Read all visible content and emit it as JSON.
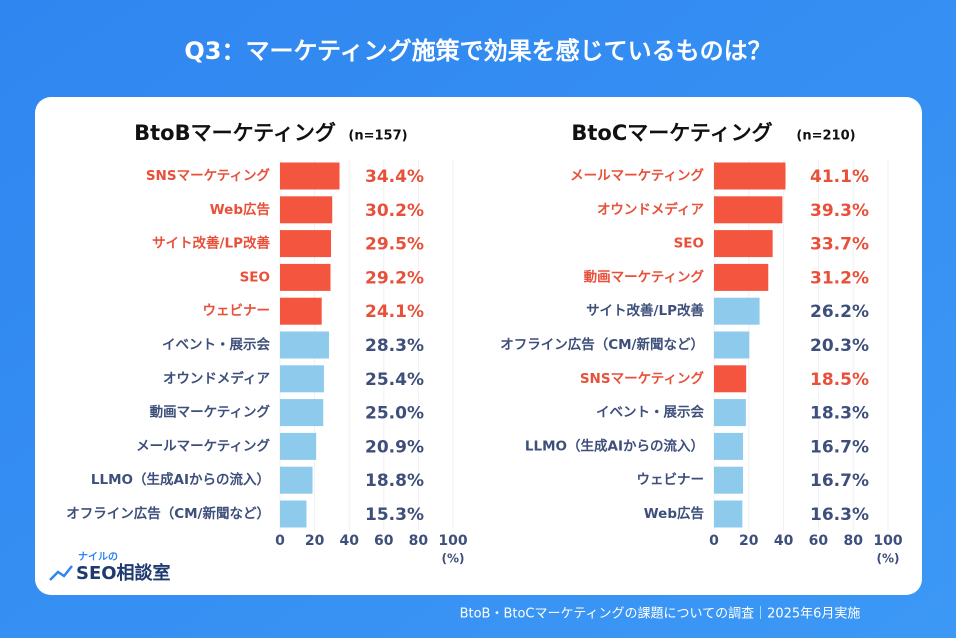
{
  "title": "Q3：マーケティング施策で効果を感じているものは？",
  "footer": "BtoB・BtoCマーケティングの課題についての調査｜2025年6月実施",
  "logo": {
    "top": "ナイルの",
    "main": "SEO相談室"
  },
  "chart_data": [
    {
      "type": "bar",
      "title": "BtoBマーケティング",
      "subtitle": "(n=157)",
      "categories": [
        "SNSマーケティング",
        "Web広告",
        "サイト改善/LP改善",
        "SEO",
        "ウェビナー",
        "イベント・展示会",
        "オウンドメディア",
        "動画マーケティング",
        "メールマーケティング",
        "LLMO（生成AIからの流入）",
        "オフライン広告（CM/新聞など）"
      ],
      "values": [
        34.4,
        30.2,
        29.5,
        29.2,
        24.1,
        28.3,
        25.4,
        25.0,
        20.9,
        18.8,
        15.3
      ],
      "value_labels": [
        "34.4%",
        "30.2%",
        "29.5%",
        "29.2%",
        "24.1%",
        "28.3%",
        "25.4%",
        "25.0%",
        "20.9%",
        "18.8%",
        "15.3%"
      ],
      "colors": [
        "#f4553f",
        "#f4553f",
        "#f4553f",
        "#f4553f",
        "#f4553f",
        "#8ecaec",
        "#8ecaec",
        "#8ecaec",
        "#8ecaec",
        "#8ecaec",
        "#8ecaec"
      ],
      "label_colors": [
        "#e8503a",
        "#e8503a",
        "#e8503a",
        "#e8503a",
        "#e8503a",
        "#3d4f7a",
        "#3d4f7a",
        "#3d4f7a",
        "#3d4f7a",
        "#3d4f7a",
        "#3d4f7a"
      ],
      "xlim": [
        0,
        100
      ],
      "xticks": [
        0,
        20,
        40,
        60,
        80,
        100
      ],
      "x_label": "(%)",
      "grid": true
    },
    {
      "type": "bar",
      "title": "BtoCマーケティング",
      "subtitle": "(n=210)",
      "categories": [
        "メールマーケティング",
        "オウンドメディア",
        "SEO",
        "動画マーケティング",
        "サイト改善/LP改善",
        "オフライン広告（CM/新聞など）",
        "SNSマーケティング",
        "イベント・展示会",
        "LLMO（生成AIからの流入）",
        "ウェビナー",
        "Web広告"
      ],
      "values": [
        41.1,
        39.3,
        33.7,
        31.2,
        26.2,
        20.3,
        18.5,
        18.3,
        16.7,
        16.7,
        16.3
      ],
      "value_labels": [
        "41.1%",
        "39.3%",
        "33.7%",
        "31.2%",
        "26.2%",
        "20.3%",
        "18.5%",
        "18.3%",
        "16.7%",
        "16.7%",
        "16.3%"
      ],
      "colors": [
        "#f4553f",
        "#f4553f",
        "#f4553f",
        "#f4553f",
        "#8ecaec",
        "#8ecaec",
        "#f4553f",
        "#8ecaec",
        "#8ecaec",
        "#8ecaec",
        "#8ecaec"
      ],
      "label_colors": [
        "#e8503a",
        "#e8503a",
        "#e8503a",
        "#e8503a",
        "#3d4f7a",
        "#3d4f7a",
        "#e8503a",
        "#3d4f7a",
        "#3d4f7a",
        "#3d4f7a",
        "#3d4f7a"
      ],
      "xlim": [
        0,
        100
      ],
      "xticks": [
        0,
        20,
        40,
        60,
        80,
        100
      ],
      "x_label": "(%)",
      "grid": true
    }
  ]
}
